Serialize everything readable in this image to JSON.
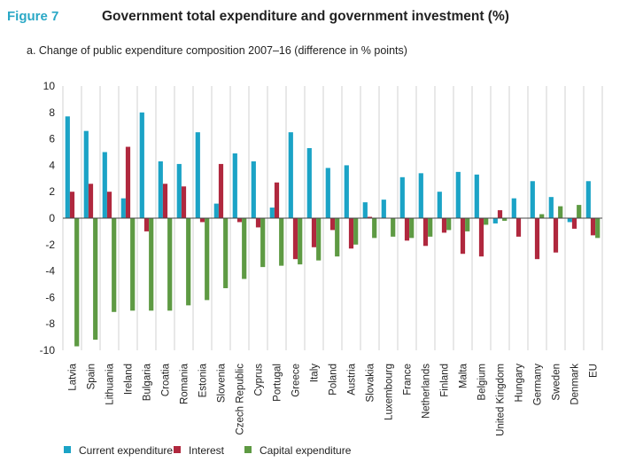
{
  "figure_label": "Figure 7",
  "figure_title": "Government total expenditure and government investment (%)",
  "colors": {
    "accent": "#2aa8c6",
    "current": "#1ba3c6",
    "interest": "#b0283e",
    "capital": "#5e9a43",
    "grid": "#c7c7c7"
  },
  "chart_data": {
    "type": "bar",
    "title": "a. Change of public expenditure composition 2007–16 (difference in % points)",
    "xlabel": "",
    "ylabel": "",
    "ylim": [
      -10,
      10
    ],
    "yticks": [
      10,
      8,
      6,
      4,
      2,
      0,
      -2,
      -4,
      -6,
      -8,
      -10
    ],
    "ytick_labels": [
      "10",
      "8",
      "6",
      "4",
      "2",
      "0",
      "-2",
      "-4",
      "-6",
      "-8",
      "-10"
    ],
    "grid": "vertical",
    "legend_position": "bottom",
    "categories": [
      "Latvia",
      "Spain",
      "Lithuania",
      "Ireland",
      "Bulgaria",
      "Croatia",
      "Romania",
      "Estonia",
      "Slovenia",
      "Czech Republic",
      "Cyprus",
      "Portugal",
      "Greece",
      "Italy",
      "Poland",
      "Austria",
      "Slovakia",
      "Luxembourg",
      "France",
      "Netherlands",
      "Finland",
      "Malta",
      "Belgium",
      "United Kingdom",
      "Hungary",
      "Germany",
      "Sweden",
      "Denmark",
      "EU"
    ],
    "series": [
      {
        "name": "Current expenditure",
        "color": "#1ba3c6",
        "values": [
          7.7,
          6.6,
          5.0,
          1.5,
          8.0,
          4.3,
          4.1,
          6.5,
          1.1,
          4.9,
          4.3,
          0.8,
          6.5,
          5.3,
          3.8,
          4.0,
          1.2,
          1.4,
          3.1,
          3.4,
          2.0,
          3.5,
          3.3,
          -0.4,
          1.5,
          2.8,
          1.6,
          -0.3,
          2.8
        ]
      },
      {
        "name": "Interest",
        "color": "#b0283e",
        "values": [
          2.0,
          2.6,
          2.0,
          5.4,
          -1.0,
          2.6,
          2.4,
          -0.3,
          4.1,
          -0.3,
          -0.7,
          2.7,
          -3.1,
          -2.2,
          -0.9,
          -2.3,
          0.1,
          0.0,
          -1.7,
          -2.1,
          -1.1,
          -2.7,
          -2.9,
          0.6,
          -1.4,
          -3.1,
          -2.6,
          -0.8,
          -1.3
        ]
      },
      {
        "name": "Capital expenditure",
        "color": "#5e9a43",
        "values": [
          -9.7,
          -9.2,
          -7.1,
          -7.0,
          -7.0,
          -7.0,
          -6.6,
          -6.2,
          -5.3,
          -4.6,
          -3.7,
          -3.6,
          -3.5,
          -3.2,
          -2.9,
          -2.0,
          -1.5,
          -1.4,
          -1.5,
          -1.4,
          -0.9,
          -1.0,
          -0.5,
          -0.2,
          0.0,
          0.3,
          0.9,
          1.0,
          -1.5
        ]
      }
    ]
  }
}
